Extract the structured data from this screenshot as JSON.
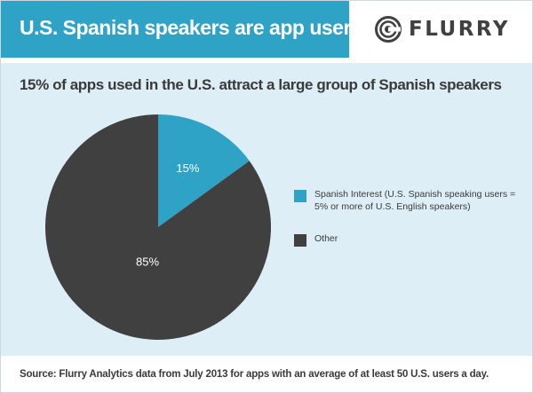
{
  "header": {
    "title": "U.S. Spanish speakers are app users",
    "logo_text": "FLURRY",
    "logo_icon": "flurry-logo-icon"
  },
  "colors": {
    "header_bg": "#2ea3c6",
    "panel_bg": "#ddeef6",
    "spanish": "#2ea3c6",
    "other": "#404040"
  },
  "chart_data": {
    "type": "pie",
    "title": "15% of apps used in the U.S. attract a large group of Spanish speakers",
    "slices": [
      {
        "label": "Spanish Interest (U.S. Spanish speaking users = 5% or more of U.S. English speakers)",
        "value": 15,
        "display": "15%",
        "color": "#2ea3c6"
      },
      {
        "label": "Other",
        "value": 85,
        "display": "85%",
        "color": "#404040"
      }
    ],
    "legend_position": "right"
  },
  "footer": {
    "source": "Source: Flurry Analytics data from July 2013 for apps with an average of at least 50 U.S. users a day."
  }
}
